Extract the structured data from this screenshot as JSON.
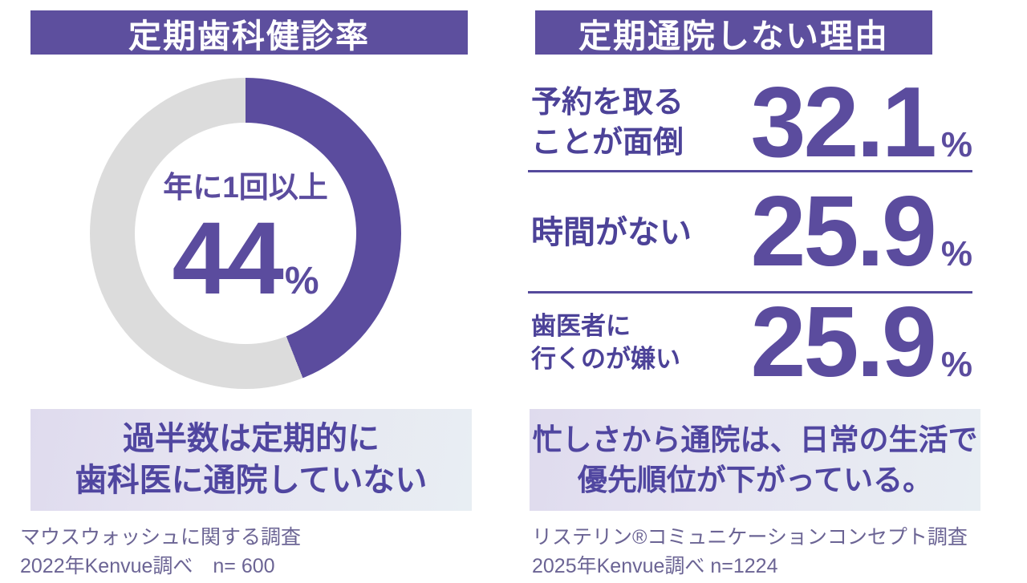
{
  "colors": {
    "accent_purple": "#5d4f9e",
    "donut_purple": "#5b4c9e",
    "ring_gray": "#dcdcdc",
    "label_purple": "#4c4298",
    "summary_purple": "#5046a0",
    "source_gray_purple": "#6b6494",
    "box_gradient_left": "#dfdbee",
    "box_gradient_right": "#e8eef3",
    "divider_purple": "#554a9c"
  },
  "left_panel": {
    "header": "定期歯科健診率",
    "donut": {
      "center_label": "年に1回以上",
      "value": "44",
      "unit": "%"
    },
    "summary": "過半数は定期的に\n歯科医に通院していない",
    "source": "マウスウォッシュに関する調査\n2022年Kenvue調べ　n= 600"
  },
  "right_panel": {
    "header": "定期通院しない理由",
    "reasons": [
      {
        "label": "予約を取る\nことが面倒",
        "value": "32.1",
        "unit": "%"
      },
      {
        "label": "時間がない",
        "value": "25.9",
        "unit": "%"
      },
      {
        "label": "歯医者に\n行くのが嫌い",
        "value": "25.9",
        "unit": "%"
      }
    ],
    "summary": "忙しさから通院は、日常の生活で\n優先順位が下がっている。",
    "source": "リステリン®コミュニケーションコンセプト調査\n2025年Kenvue調べ n=1224"
  },
  "chart_data": [
    {
      "type": "pie",
      "style": "donut",
      "title": "定期歯科健診率",
      "slices": [
        {
          "label": "年に1回以上",
          "value": 44
        },
        {
          "label": "(通院していない)",
          "value": 56
        }
      ],
      "unit": "%",
      "start_angle_deg": 0,
      "direction": "clockwise",
      "annotation": "過半数は定期的に歯科医に通院していない",
      "source": "マウスウォッシュに関する調査 2022年Kenvue調べ n=600"
    },
    {
      "type": "bar",
      "title": "定期通院しない理由",
      "categories": [
        "予約を取ることが面倒",
        "時間がない",
        "歯医者に行くのが嫌い"
      ],
      "values": [
        32.1,
        25.9,
        25.9
      ],
      "unit": "%",
      "annotation": "忙しさから通院は、日常の生活で優先順位が下がっている。",
      "source": "リステリン®コミュニケーションコンセプト調査 2025年Kenvue調べ n=1224"
    }
  ]
}
